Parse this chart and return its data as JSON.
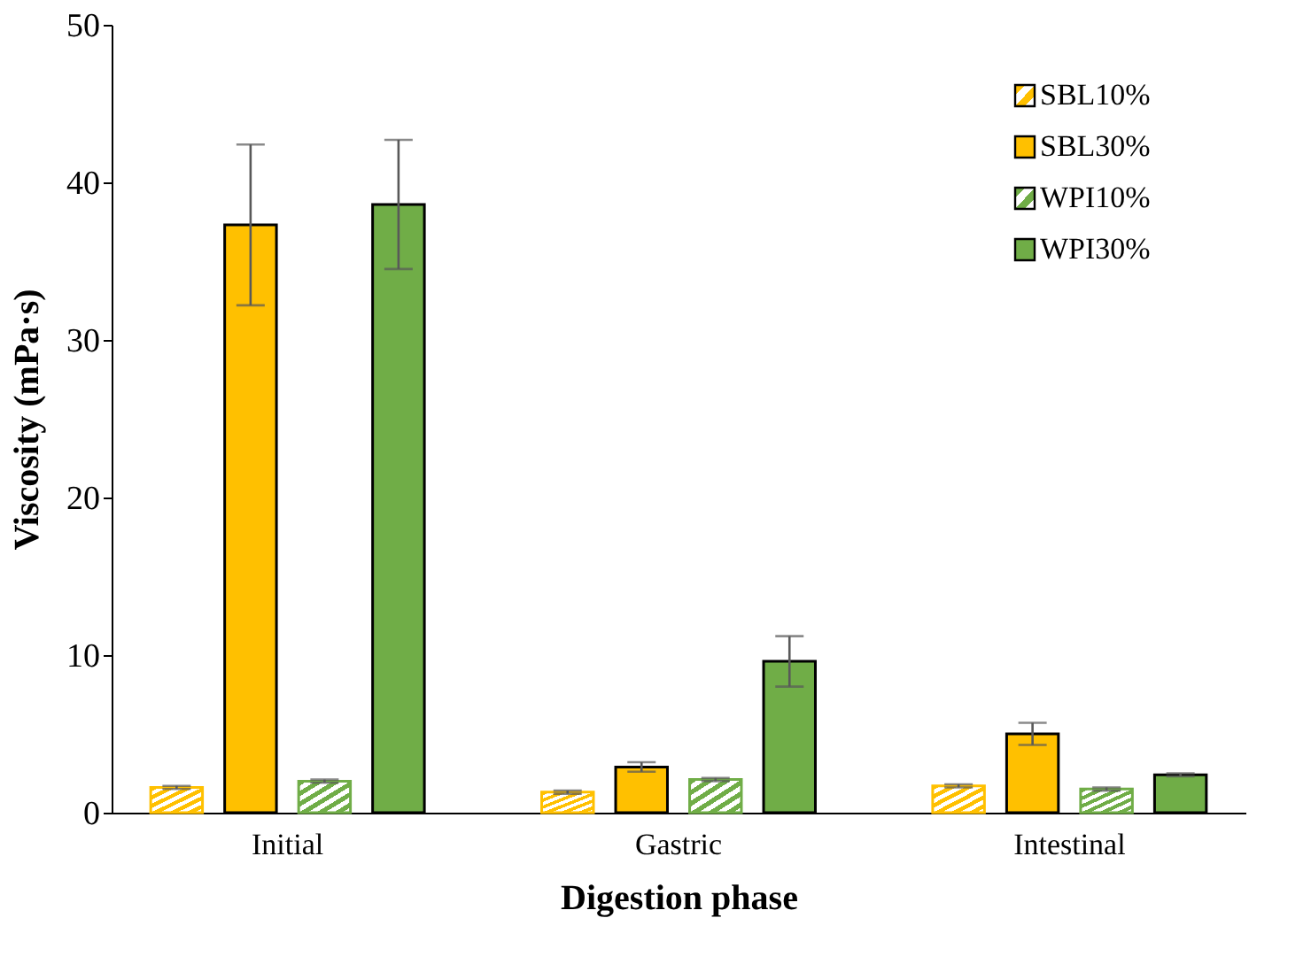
{
  "chart_data": {
    "type": "bar",
    "xlabel": "Digestion phase",
    "ylabel": "Viscosity (mPa·s)",
    "categories": [
      "Initial",
      "Gastric",
      "Intestinal"
    ],
    "series": [
      {
        "name": "SBL10%",
        "color": "#ffc000",
        "values": [
          1.6,
          1.3,
          1.7
        ],
        "errors": [
          0.1,
          0.1,
          0.1
        ]
      },
      {
        "name": "SBL30%",
        "color": "#ffc000",
        "values": [
          37.3,
          2.9,
          5.0
        ],
        "errors": [
          5.1,
          0.3,
          0.7
        ]
      },
      {
        "name": "WPI10%",
        "color": "#70ad47",
        "values": [
          2.0,
          2.1,
          1.5
        ],
        "errors": [
          0.1,
          0.1,
          0.1
        ]
      },
      {
        "name": "WPI30%",
        "color": "#70ad47",
        "values": [
          38.6,
          9.6,
          2.4
        ],
        "errors": [
          4.1,
          1.6,
          0.1
        ]
      }
    ],
    "ylim": [
      0,
      50
    ],
    "yticks": [
      0,
      10,
      20,
      30,
      40,
      50
    ],
    "grid": false,
    "legend": "top right"
  }
}
